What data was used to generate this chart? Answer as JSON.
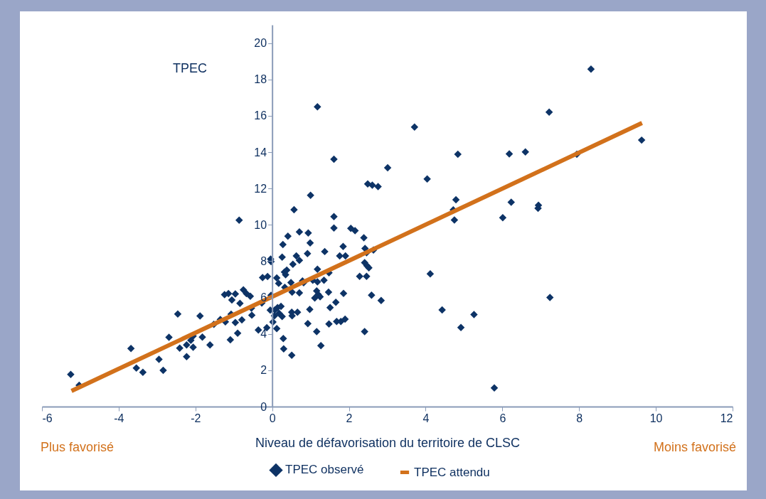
{
  "chart_data": {
    "type": "scatter",
    "ylabel": "TPEC",
    "xlabel": "Niveau de défavorisation du territoire de CLSC",
    "annotations": [
      "Plus favorisé",
      "Moins favorisé"
    ],
    "xlim": [
      -6,
      12
    ],
    "xticks": [
      -6,
      -4,
      -2,
      0,
      2,
      4,
      6,
      8,
      10,
      12
    ],
    "ylim": [
      0,
      21
    ],
    "yticks": [
      0,
      2,
      4,
      6,
      8,
      10,
      12,
      14,
      16,
      18,
      20
    ],
    "legend": "bottom",
    "grid": false,
    "series": [
      {
        "name": "TPEC observé",
        "marker": "diamond",
        "color": "#0d3366",
        "x": [
          -5.25,
          -5.03,
          -3.68,
          -3.54,
          -3.37,
          -2.95,
          -2.84,
          -2.69,
          -2.46,
          -2.41,
          -2.23,
          -2.23,
          -2.12,
          -2.06,
          -2.06,
          -1.88,
          -1.82,
          -1.62,
          -1.52,
          -1.35,
          -1.22,
          -1.24,
          -1.14,
          -1.05,
          -1.07,
          -1.09,
          -0.96,
          -0.96,
          -0.9,
          -0.86,
          -0.84,
          -0.79,
          -0.75,
          -0.67,
          -0.57,
          -0.54,
          -0.53,
          -0.36,
          -0.27,
          -0.25,
          -0.12,
          -0.14,
          -0.04,
          -0.03,
          -0.03,
          -0.05,
          1.18,
          3.71,
          1.61,
          3.01,
          4.04,
          2.49,
          2.61,
          2.76,
          1.0,
          0.57,
          1.61,
          1.61,
          0.71,
          0.94,
          2.05,
          2.16,
          0.41,
          0.99,
          2.39,
          0.28,
          1.85,
          2.42,
          2.64,
          2.46,
          1.37,
          0.92,
          1.76,
          1.91,
          0.26,
          0.63,
          0.71,
          0.54,
          2.41,
          2.47,
          2.52,
          1.18,
          1.48,
          0.32,
          0.38,
          0.35,
          0.12,
          2.28,
          2.46,
          0.17,
          0.79,
          0.82,
          1.06,
          1.18,
          1.35,
          0.33,
          0.49,
          0.52,
          0.71,
          1.16,
          1.2,
          1.47,
          1.86,
          1.11,
          1.25,
          2.59,
          2.84,
          4.43,
          4.12,
          0.98,
          1.51,
          1.66,
          0.14,
          0.23,
          0.07,
          0.06,
          0.18,
          0.26,
          0.51,
          0.52,
          0.66,
          0.93,
          1.48,
          1.68,
          1.79,
          1.9,
          0.02,
          0.12,
          1.16,
          2.41,
          0.29,
          0.3,
          1.27,
          0.51,
          8.31,
          7.22,
          4.84,
          6.18,
          6.6,
          7.94,
          4.79,
          6.23,
          4.72,
          4.75,
          6.01,
          6.94,
          6.93,
          5.26,
          4.92,
          7.24,
          5.79,
          9.63
        ],
        "values": [
          1.77,
          1.17,
          3.2,
          2.12,
          1.89,
          2.6,
          1.99,
          3.81,
          5.09,
          3.22,
          3.39,
          2.75,
          3.65,
          3.88,
          3.27,
          4.99,
          3.82,
          3.39,
          4.53,
          4.79,
          4.66,
          6.16,
          6.22,
          5.87,
          5.08,
          3.68,
          6.2,
          4.62,
          4.04,
          10.26,
          5.68,
          4.77,
          6.42,
          6.22,
          6.07,
          5.42,
          5.03,
          4.21,
          5.7,
          7.1,
          7.16,
          4.34,
          8.11,
          7.98,
          6.12,
          5.31,
          16.49,
          15.38,
          13.61,
          13.14,
          12.52,
          12.25,
          12.18,
          12.1,
          11.62,
          10.83,
          10.45,
          9.83,
          9.61,
          9.55,
          9.81,
          9.68,
          9.38,
          9.0,
          9.29,
          8.92,
          8.81,
          8.7,
          8.61,
          8.47,
          8.53,
          8.42,
          8.29,
          8.29,
          8.22,
          8.29,
          8.05,
          7.83,
          7.92,
          7.75,
          7.64,
          7.56,
          7.36,
          7.4,
          7.51,
          7.25,
          7.08,
          7.17,
          7.17,
          6.78,
          6.91,
          6.81,
          6.95,
          6.86,
          6.95,
          6.56,
          6.82,
          6.3,
          6.26,
          6.36,
          6.17,
          6.3,
          6.23,
          5.97,
          6.04,
          6.13,
          5.84,
          5.32,
          7.3,
          5.35,
          5.45,
          5.74,
          5.45,
          5.51,
          5.32,
          5.0,
          5.13,
          4.96,
          5.19,
          5.0,
          5.19,
          4.57,
          4.55,
          4.68,
          4.68,
          4.81,
          4.65,
          4.29,
          4.13,
          4.13,
          3.74,
          3.18,
          3.35,
          2.83,
          18.57,
          16.2,
          13.88,
          13.9,
          14.01,
          13.88,
          11.38,
          11.24,
          10.82,
          10.27,
          10.39,
          11.08,
          10.91,
          5.06,
          4.35,
          6.0,
          1.03,
          14.66
        ]
      },
      {
        "name": "TPEC attendu",
        "type": "line",
        "color": "#d2711b",
        "x": [
          -5.23,
          9.64
        ],
        "values": [
          0.86,
          15.6
        ]
      }
    ]
  }
}
